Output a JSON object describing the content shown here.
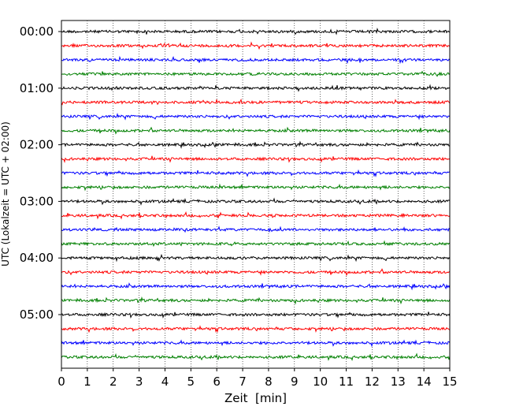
{
  "chart_data": {
    "type": "line",
    "title": "",
    "xlabel": "Zeit  [min]",
    "ylabel": "UTC (Lokalzeit = UTC + 02:00)",
    "xlim": [
      0,
      15
    ],
    "x_ticks": [
      "0",
      "1",
      "2",
      "3",
      "4",
      "5",
      "6",
      "7",
      "8",
      "9",
      "10",
      "11",
      "12",
      "13",
      "14",
      "15"
    ],
    "y_ticks": [
      "00:00",
      "01:00",
      "02:00",
      "03:00",
      "04:00",
      "05:00"
    ],
    "grid": "vertical dotted",
    "trace_interval_min": 15,
    "trace_count": 24,
    "colors": [
      "#000000",
      "#ff0000",
      "#0000ff",
      "#008000"
    ]
  }
}
